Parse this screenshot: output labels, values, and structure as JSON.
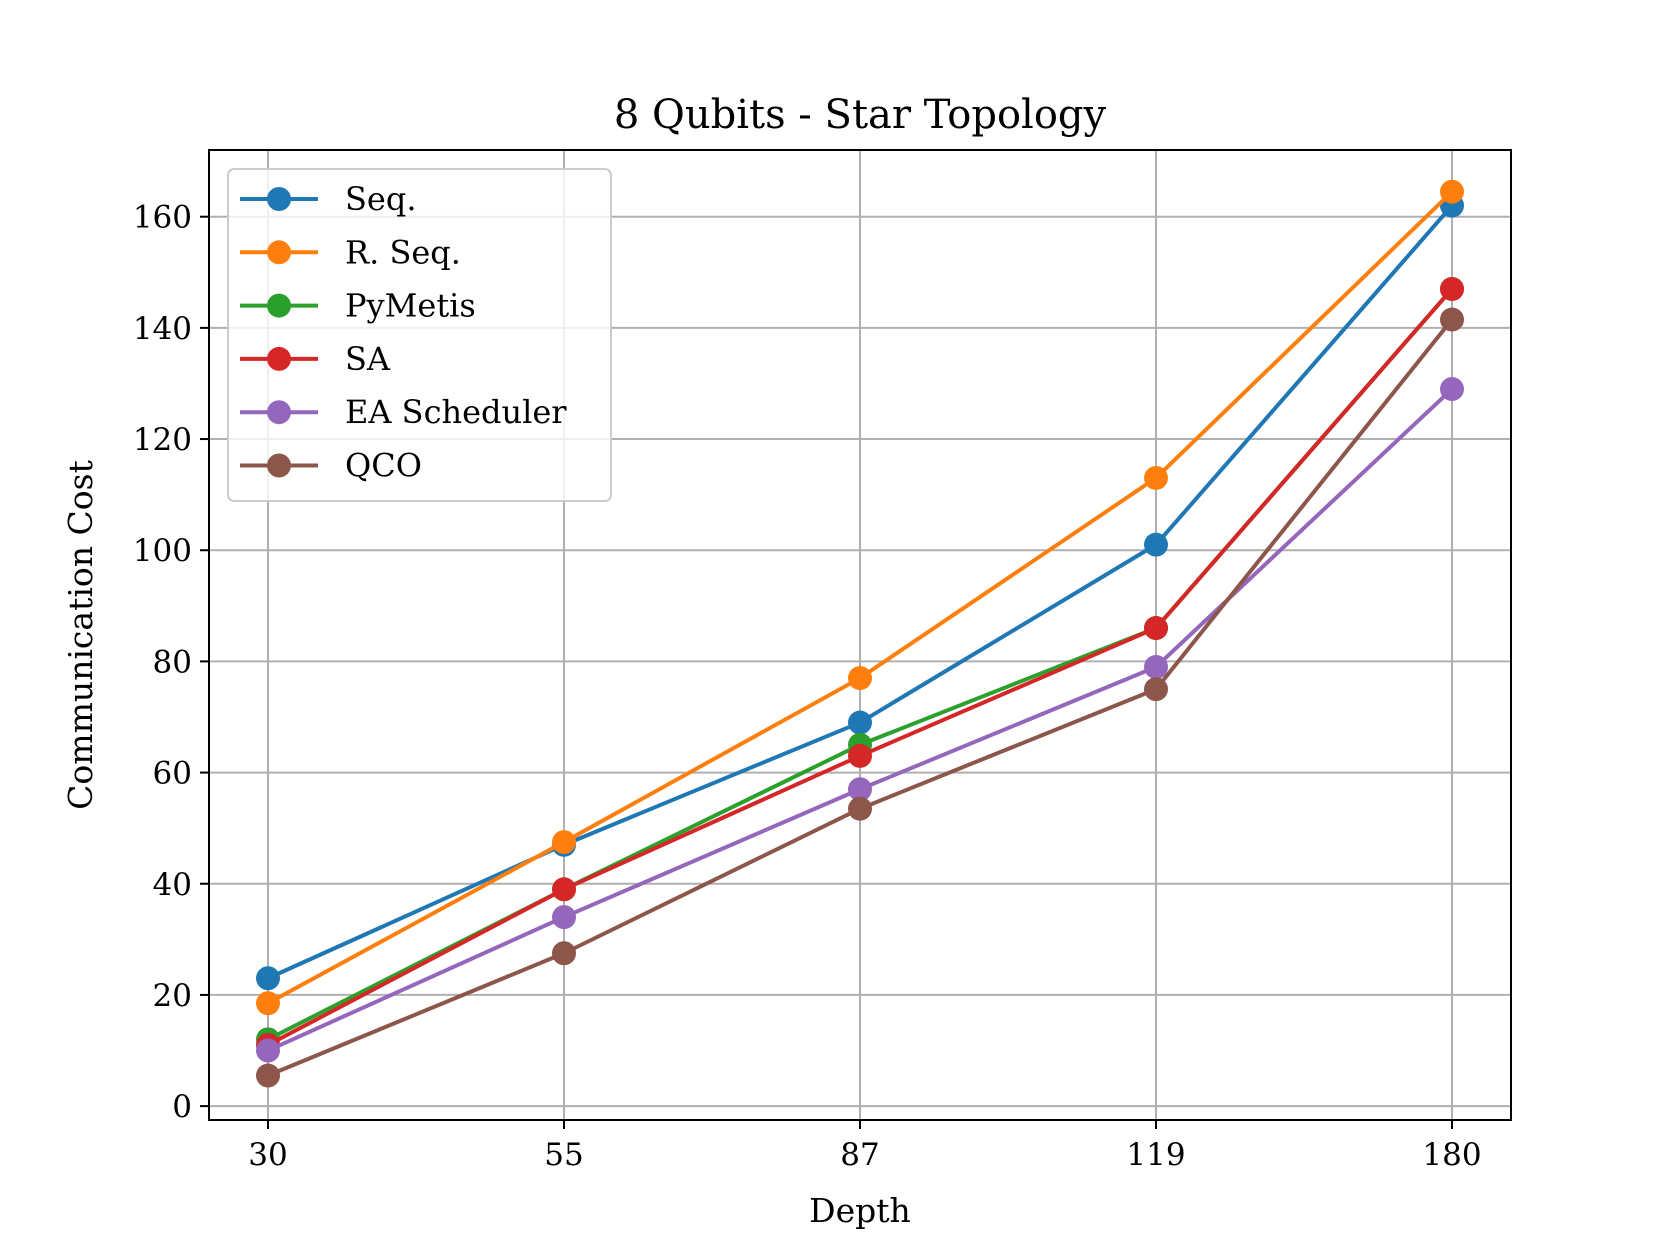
{
  "chart_data": {
    "type": "line",
    "title": "8 Qubits - Star Topology",
    "xlabel": "Depth",
    "ylabel": "Communication Cost",
    "categories": [
      "30",
      "55",
      "87",
      "119",
      "180"
    ],
    "ylim": [
      -2.5,
      172
    ],
    "yticks": [
      0,
      20,
      40,
      60,
      80,
      100,
      120,
      140,
      160
    ],
    "grid": true,
    "legend_position": "top-left",
    "series": [
      {
        "name": "Seq.",
        "color": "#1f77b4",
        "values": [
          23,
          47,
          69,
          101,
          162
        ]
      },
      {
        "name": "R. Seq.",
        "color": "#ff7f0e",
        "values": [
          18.5,
          47.5,
          77,
          113,
          164.5
        ]
      },
      {
        "name": "PyMetis",
        "color": "#2ca02c",
        "values": [
          12,
          39,
          65,
          86,
          147
        ]
      },
      {
        "name": "SA",
        "color": "#d62728",
        "values": [
          11,
          39,
          63,
          86,
          147
        ]
      },
      {
        "name": "EA Scheduler",
        "color": "#9467bd",
        "values": [
          10,
          34,
          57,
          79,
          129
        ]
      },
      {
        "name": "QCO",
        "color": "#8c564b",
        "values": [
          5.5,
          27.5,
          53.5,
          75,
          141.5
        ]
      }
    ]
  }
}
